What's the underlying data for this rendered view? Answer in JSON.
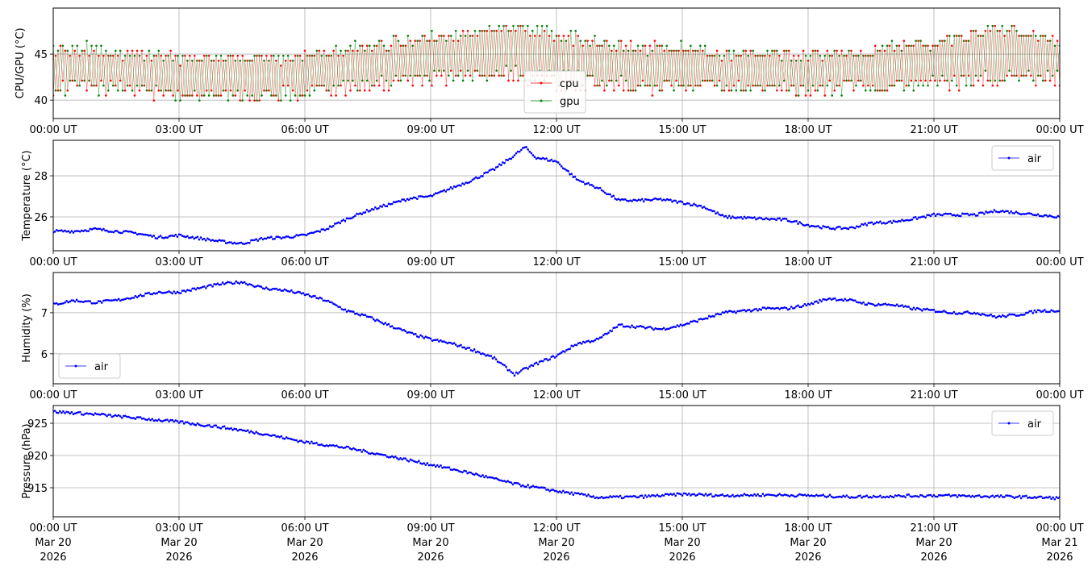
{
  "chart_data": [
    {
      "type": "line",
      "ylabel": "CPU/GPU (°C)",
      "ylim": [
        38,
        50
      ],
      "yticks": [
        40,
        45
      ],
      "xlim_hours": [
        0,
        24
      ],
      "xticks": [
        "00:00 UT",
        "03:00 UT",
        "06:00 UT",
        "09:00 UT",
        "12:00 UT",
        "15:00 UT",
        "18:00 UT",
        "21:00 UT",
        "00:00 UT"
      ],
      "grid": true,
      "legend": "lower-center",
      "x_hours": [
        0,
        1,
        2,
        3,
        4,
        5,
        6,
        7,
        8,
        9,
        10,
        11,
        12,
        13,
        14,
        15,
        16,
        17,
        18,
        19,
        20,
        21,
        22,
        23,
        24
      ],
      "series": [
        {
          "name": "cpu",
          "color": "#ff0000",
          "low": [
            40.7,
            40.7,
            40.2,
            39.7,
            39.7,
            39.7,
            40.2,
            40.7,
            40.7,
            41.2,
            41.7,
            41.7,
            41.2,
            40.7,
            40.7,
            40.7,
            40.7,
            40.2,
            40.2,
            40.7,
            40.7,
            40.7,
            41.2,
            41.7,
            41.2
          ],
          "high": [
            46.2,
            45.6,
            45.6,
            45.1,
            45.1,
            45.1,
            45.1,
            46.2,
            46.7,
            47.3,
            47.8,
            48.3,
            47.3,
            46.7,
            46.2,
            46.2,
            45.6,
            45.6,
            45.6,
            45.6,
            46.2,
            46.7,
            47.8,
            48.3,
            46.7
          ]
        },
        {
          "name": "gpu",
          "color": "#008000",
          "low": [
            40.7,
            40.7,
            40.2,
            39.7,
            39.7,
            39.7,
            40.2,
            40.7,
            41.2,
            41.7,
            42.2,
            42.2,
            41.7,
            41.2,
            40.7,
            40.7,
            40.7,
            40.7,
            40.2,
            40.7,
            40.7,
            41.2,
            41.7,
            41.7,
            41.7
          ],
          "high": [
            46.2,
            46.2,
            45.6,
            45.1,
            45.1,
            45.1,
            45.1,
            46.2,
            46.7,
            47.3,
            47.8,
            48.9,
            47.8,
            46.7,
            46.2,
            46.2,
            45.6,
            45.6,
            45.6,
            45.6,
            46.2,
            46.7,
            47.8,
            48.3,
            46.7
          ]
        }
      ]
    },
    {
      "type": "line",
      "ylabel": "Temperature (°C)",
      "ylim": [
        24.35,
        29.73
      ],
      "yticks": [
        26,
        28
      ],
      "xticks": [
        "00:00 UT",
        "03:00 UT",
        "06:00 UT",
        "09:00 UT",
        "12:00 UT",
        "15:00 UT",
        "18:00 UT",
        "21:00 UT",
        "00:00 UT"
      ],
      "grid": true,
      "legend": "upper-right",
      "x_hours": [
        0,
        0.5,
        1,
        1.5,
        2,
        2.5,
        3,
        3.5,
        4,
        4.5,
        5,
        5.5,
        6,
        6.5,
        7,
        7.5,
        8,
        8.5,
        9,
        9.5,
        10,
        10.5,
        11,
        11.25,
        11.5,
        12,
        12.5,
        13,
        13.5,
        14,
        14.5,
        15,
        15.5,
        16,
        16.5,
        17,
        17.5,
        18,
        18.5,
        19,
        19.5,
        20,
        20.5,
        21,
        21.5,
        22,
        22.5,
        23,
        23.5,
        24
      ],
      "series": [
        {
          "name": "air",
          "color": "#0000ff",
          "values": [
            25.3,
            25.3,
            25.4,
            25.3,
            25.2,
            25.0,
            25.1,
            24.95,
            24.8,
            24.7,
            24.95,
            25.0,
            25.1,
            25.4,
            25.9,
            26.3,
            26.6,
            26.9,
            27.0,
            27.4,
            27.8,
            28.3,
            29.0,
            29.4,
            28.9,
            28.7,
            27.8,
            27.4,
            26.8,
            26.8,
            26.85,
            26.7,
            26.5,
            26.0,
            25.95,
            25.9,
            25.85,
            25.6,
            25.45,
            25.45,
            25.7,
            25.75,
            25.9,
            26.1,
            26.1,
            26.1,
            26.3,
            26.2,
            26.1,
            26.0
          ]
        }
      ]
    },
    {
      "type": "line",
      "ylabel": "Humidity (%)",
      "ylim": [
        5.27,
        7.98
      ],
      "yticks": [
        6,
        7
      ],
      "xticks": [
        "00:00 UT",
        "03:00 UT",
        "06:00 UT",
        "09:00 UT",
        "12:00 UT",
        "15:00 UT",
        "18:00 UT",
        "21:00 UT",
        "00:00 UT"
      ],
      "grid": true,
      "legend": "lower-left",
      "x_hours": [
        0,
        0.5,
        1,
        1.5,
        2,
        2.5,
        3,
        3.5,
        4,
        4.5,
        5,
        5.5,
        6,
        6.5,
        7,
        7.5,
        8,
        8.5,
        9,
        9.5,
        10,
        10.5,
        11,
        11.5,
        12,
        12.5,
        13,
        13.5,
        14,
        14.5,
        15,
        15.5,
        16,
        16.5,
        17,
        17.5,
        18,
        18.5,
        19,
        19.5,
        20,
        20.5,
        21,
        21.5,
        22,
        22.5,
        23,
        23.5,
        24
      ],
      "series": [
        {
          "name": "air",
          "color": "#0000ff",
          "values": [
            7.2,
            7.3,
            7.25,
            7.3,
            7.4,
            7.5,
            7.5,
            7.6,
            7.7,
            7.75,
            7.6,
            7.55,
            7.45,
            7.3,
            7.05,
            6.9,
            6.7,
            6.5,
            6.35,
            6.25,
            6.1,
            5.9,
            5.5,
            5.75,
            5.95,
            6.25,
            6.35,
            6.7,
            6.65,
            6.6,
            6.7,
            6.85,
            7.0,
            7.05,
            7.1,
            7.1,
            7.2,
            7.35,
            7.3,
            7.2,
            7.2,
            7.1,
            7.05,
            7.0,
            7.0,
            6.9,
            6.95,
            7.05,
            7.05
          ]
        }
      ]
    },
    {
      "type": "line",
      "ylabel": "Pressure (hPa)",
      "ylim": [
        910.5,
        927.75
      ],
      "yticks": [
        915,
        920,
        925
      ],
      "xticks": [
        "00:00 UT\nMar 20\n2026",
        "03:00 UT\nMar 20\n2026",
        "06:00 UT\nMar 20\n2026",
        "09:00 UT\nMar 20\n2026",
        "12:00 UT\nMar 20\n2026",
        "15:00 UT\nMar 20\n2026",
        "18:00 UT\nMar 20\n2026",
        "21:00 UT\nMar 20\n2026",
        "00:00 UT\nMar 21\n2026"
      ],
      "grid": true,
      "legend": "upper-right",
      "x_hours": [
        0,
        1,
        2,
        3,
        4,
        5,
        6,
        7,
        8,
        9,
        10,
        11,
        12,
        13,
        14,
        15,
        16,
        17,
        18,
        19,
        20,
        21,
        22,
        23,
        24
      ],
      "series": [
        {
          "name": "air",
          "color": "#0000ff",
          "values": [
            926.8,
            926.4,
            925.8,
            925.2,
            924.4,
            923.4,
            922.1,
            921.2,
            919.9,
            918.6,
            917.2,
            915.6,
            914.5,
            913.5,
            913.6,
            914.0,
            913.8,
            913.9,
            913.8,
            913.6,
            913.7,
            913.8,
            913.7,
            913.6,
            913.4
          ]
        }
      ]
    }
  ]
}
